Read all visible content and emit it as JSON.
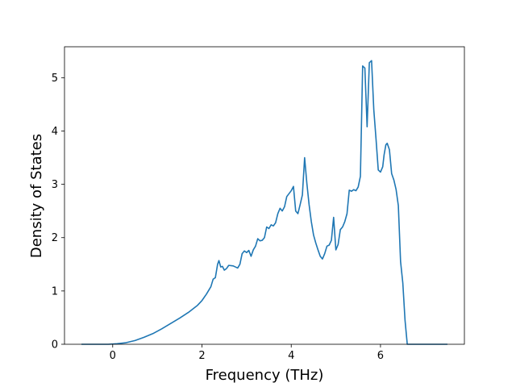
{
  "chart_data": {
    "type": "line",
    "xlabel": "Frequency (THz)",
    "ylabel": "Density of States",
    "xlim": [
      -1.08,
      7.88
    ],
    "ylim": [
      0,
      5.58
    ],
    "xticks": [
      0,
      2,
      4,
      6
    ],
    "yticks": [
      0,
      1,
      2,
      3,
      4,
      5
    ],
    "grid": false,
    "color": "#1f77b4",
    "series": [
      {
        "x": [
          -0.7,
          -0.4,
          -0.1,
          0.1,
          0.3,
          0.5,
          0.7,
          0.9,
          1.1,
          1.3,
          1.5,
          1.7,
          1.9,
          2.0,
          2.1,
          2.2,
          2.25,
          2.3,
          2.35,
          2.38,
          2.42,
          2.46,
          2.5,
          2.55,
          2.6,
          2.7,
          2.8,
          2.85,
          2.9,
          2.95,
          3.0,
          3.05,
          3.1,
          3.15,
          3.2,
          3.25,
          3.3,
          3.35,
          3.4,
          3.45,
          3.5,
          3.55,
          3.6,
          3.65,
          3.7,
          3.75,
          3.8,
          3.85,
          3.9,
          4.0,
          4.05,
          4.1,
          4.15,
          4.2,
          4.25,
          4.3,
          4.35,
          4.4,
          4.45,
          4.5,
          4.55,
          4.6,
          4.65,
          4.7,
          4.75,
          4.8,
          4.85,
          4.9,
          4.95,
          5.0,
          5.05,
          5.1,
          5.15,
          5.2,
          5.25,
          5.3,
          5.35,
          5.4,
          5.45,
          5.5,
          5.55,
          5.6,
          5.65,
          5.7,
          5.75,
          5.8,
          5.85,
          5.9,
          5.95,
          6.0,
          6.05,
          6.08,
          6.12,
          6.15,
          6.2,
          6.25,
          6.3,
          6.35,
          6.4,
          6.45,
          6.5,
          6.55,
          6.6,
          6.65,
          6.7,
          6.75,
          6.8,
          6.85,
          6.9,
          6.95,
          7.2,
          7.5
        ],
        "y": [
          0,
          0,
          0,
          0.01,
          0.03,
          0.07,
          0.13,
          0.2,
          0.29,
          0.39,
          0.49,
          0.6,
          0.73,
          0.82,
          0.94,
          1.08,
          1.22,
          1.25,
          1.5,
          1.57,
          1.45,
          1.46,
          1.39,
          1.42,
          1.48,
          1.47,
          1.43,
          1.5,
          1.7,
          1.75,
          1.72,
          1.76,
          1.65,
          1.77,
          1.84,
          1.98,
          1.94,
          1.95,
          2.0,
          2.2,
          2.17,
          2.24,
          2.22,
          2.28,
          2.45,
          2.55,
          2.5,
          2.58,
          2.77,
          2.88,
          2.96,
          2.5,
          2.45,
          2.62,
          2.8,
          3.5,
          3.02,
          2.62,
          2.3,
          2.05,
          1.9,
          1.77,
          1.65,
          1.6,
          1.7,
          1.84,
          1.86,
          1.95,
          2.38,
          1.77,
          1.87,
          2.15,
          2.2,
          2.3,
          2.45,
          2.89,
          2.87,
          2.9,
          2.88,
          2.95,
          3.15,
          5.22,
          5.18,
          4.08,
          5.28,
          5.32,
          4.4,
          3.85,
          3.27,
          3.23,
          3.33,
          3.55,
          3.74,
          3.77,
          3.65,
          3.2,
          3.08,
          2.9,
          2.6,
          1.55,
          1.15,
          0.45,
          0,
          0,
          0,
          0,
          0,
          0,
          0,
          0,
          0,
          0
        ]
      }
    ]
  }
}
